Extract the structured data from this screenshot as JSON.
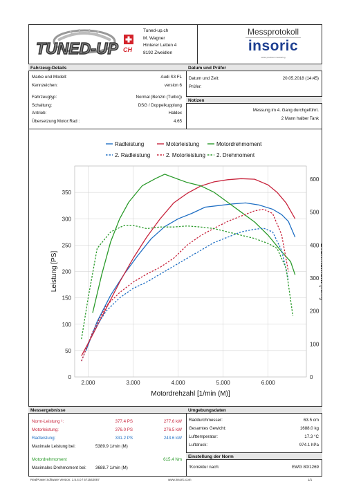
{
  "header": {
    "logo_text": "TUNED-UP",
    "logo_suffix": "CH",
    "address": [
      "Tuned-up.ch",
      "M. Wagner",
      "Hinterer Letten 4",
      "8192 Zweidlen"
    ],
    "doc_title": "Messprotokoll",
    "brand": "insoric",
    "brand_sub": "swiss precision measuring"
  },
  "vehicle": {
    "section": "Fahrzeug-Details",
    "rows": [
      {
        "label": "Marke und Modell:",
        "value": "Audi S3 FL"
      },
      {
        "label": "Kennzeichen:",
        "value": "version 6"
      },
      {
        "label": "Fahrzeugtyp:",
        "value": "Normal (Benzin (Turbo))"
      },
      {
        "label": "Schaltung:",
        "value": "DSG / Doppelkupplung"
      },
      {
        "label": "Antrieb:",
        "value": "Haldex"
      },
      {
        "label": "Übersetzung Motor:Rad :",
        "value": "4.65"
      }
    ]
  },
  "date": {
    "section": "Datum und Prüfer",
    "rows": [
      {
        "label": "Datum und Zeit:",
        "value": "20.05.2018 (14:45)"
      },
      {
        "label": "Prüfer:",
        "value": ""
      }
    ]
  },
  "notes": {
    "section": "Notizen",
    "lines": [
      "Messung im 4. Gang durchgeführt.",
      "2 Mann halber Tank"
    ]
  },
  "chart_data": {
    "type": "line",
    "xlabel": "Motordrehzahl [1/min (M)]",
    "ylabel": "Leistung [PS]",
    "y2label": "Drehmoment [Nm]",
    "xlim": [
      1700,
      6850
    ],
    "ylim": [
      0,
      400
    ],
    "y2lim": [
      0,
      640
    ],
    "x_ticks": [
      2000,
      3000,
      4000,
      5000,
      6000
    ],
    "x_tick_labels": [
      "2.000",
      "3.000",
      "4.000",
      "5.000",
      "6.000"
    ],
    "y_ticks": [
      0,
      50,
      100,
      150,
      200,
      250,
      300,
      350
    ],
    "y2_ticks": [
      0,
      100,
      200,
      300,
      400,
      500,
      600
    ],
    "legend": {
      "row1": [
        "Radleistung",
        "Motorleistung",
        "Motordrehmoment"
      ],
      "row2": [
        "2. Radleistung",
        "2. Motorleistung",
        "2. Drehmoment"
      ]
    },
    "series": [
      {
        "name": "Radleistung",
        "axis": "left",
        "color": "#1f6fc4",
        "dash": false,
        "x": [
          1950,
          2200,
          2500,
          2800,
          3100,
          3400,
          3700,
          4000,
          4300,
          4600,
          4900,
          5200,
          5500,
          5800,
          6100,
          6300,
          6450,
          6600
        ],
        "y": [
          50,
          105,
          155,
          195,
          230,
          262,
          285,
          300,
          310,
          322,
          325,
          328,
          330,
          326,
          318,
          308,
          295,
          265
        ]
      },
      {
        "name": "Motorleistung",
        "axis": "left",
        "color": "#c8253d",
        "dash": false,
        "x": [
          1850,
          2100,
          2400,
          2700,
          3000,
          3300,
          3600,
          3900,
          4200,
          4500,
          4800,
          5100,
          5400,
          5700,
          6000,
          6200,
          6400,
          6600
        ],
        "y": [
          40,
          80,
          130,
          180,
          225,
          265,
          300,
          330,
          348,
          362,
          370,
          374,
          376,
          375,
          364,
          350,
          330,
          300
        ]
      },
      {
        "name": "Motordrehmoment",
        "axis": "right",
        "color": "#2a9a2a",
        "dash": false,
        "x": [
          2100,
          2300,
          2500,
          2700,
          2900,
          3200,
          3500,
          3700,
          3900,
          4200,
          4500,
          4800,
          5100,
          5400,
          5700,
          6000,
          6300,
          6500,
          6600
        ],
        "y": [
          195,
          310,
          410,
          480,
          530,
          580,
          602,
          615,
          605,
          590,
          580,
          560,
          530,
          500,
          470,
          430,
          380,
          350,
          310
        ]
      },
      {
        "name": "2. Radleistung",
        "axis": "left",
        "color": "#1f6fc4",
        "dash": true,
        "x": [
          1850,
          2100,
          2400,
          2700,
          3000,
          3300,
          3600,
          3900,
          4200,
          4500,
          4800,
          5100,
          5400,
          5700,
          5900,
          6100,
          6300,
          6450
        ],
        "y": [
          30,
          85,
          125,
          150,
          168,
          180,
          195,
          210,
          225,
          240,
          255,
          265,
          275,
          280,
          282,
          275,
          240,
          185
        ]
      },
      {
        "name": "2. Motorleistung",
        "axis": "left",
        "color": "#c8253d",
        "dash": true,
        "x": [
          1850,
          2100,
          2400,
          2700,
          3000,
          3300,
          3600,
          3900,
          4200,
          4500,
          4800,
          5100,
          5400,
          5700,
          5900,
          6100,
          6300,
          6450
        ],
        "y": [
          30,
          85,
          135,
          160,
          180,
          195,
          208,
          225,
          250,
          268,
          282,
          295,
          305,
          315,
          318,
          310,
          270,
          200
        ]
      },
      {
        "name": "2. Drehmoment",
        "axis": "right",
        "color": "#2a9a2a",
        "dash": true,
        "x": [
          1850,
          2000,
          2200,
          2500,
          2800,
          3000,
          3300,
          3600,
          3900,
          4200,
          4500,
          4800,
          5100,
          5400,
          5700,
          6000,
          6200,
          6400,
          6550
        ],
        "y": [
          115,
          240,
          390,
          440,
          460,
          460,
          450,
          455,
          455,
          458,
          455,
          450,
          440,
          430,
          420,
          405,
          390,
          330,
          185
        ]
      }
    ]
  },
  "results": {
    "section": "Messergebnisse",
    "rows": [
      {
        "label": "Norm-Leistung ¹:",
        "ps": "377.4 PS",
        "kw": "277.6 kW",
        "color": "#c8253d"
      },
      {
        "label": "Motorleistung:",
        "ps": "376.0 PS",
        "kw": "276.5 kW",
        "color": "#c8253d"
      },
      {
        "label": "Radleistung:",
        "ps": "331.2 PS",
        "kw": "243.6 kW",
        "color": "#1f6fc4"
      }
    ],
    "max_power_label": "Maximale Leistung bei:",
    "max_power_value": "5389.9 1/min (M)",
    "torque_label": "Motordrehmoment",
    "torque_value": "615.4 Nm",
    "torque_color": "#2a9a2a",
    "max_torque_label": "Maximales Drehmoment bei:",
    "max_torque_value": "3688.7 1/min (M)"
  },
  "environment": {
    "section": "Umgebungsdaten",
    "rows": [
      {
        "label": "Raddurchmesser:",
        "value": "63.5 cm"
      },
      {
        "label": "Gesamtes Gewicht:",
        "value": "1688.0 kg"
      },
      {
        "label": "Lufttemperatur:",
        "value": "17.3 °C"
      },
      {
        "label": "Luftdruck:",
        "value": "974.1 hPa"
      }
    ]
  },
  "norm": {
    "section": "Einstellung der Norm",
    "label": "¹Korrektur nach:",
    "value": "EWG 80/1269"
  },
  "footer": {
    "software": "RealPower Software Version: 1.5.4.0 / 571542087",
    "url": "www.insoric.com",
    "page": "1/1"
  }
}
